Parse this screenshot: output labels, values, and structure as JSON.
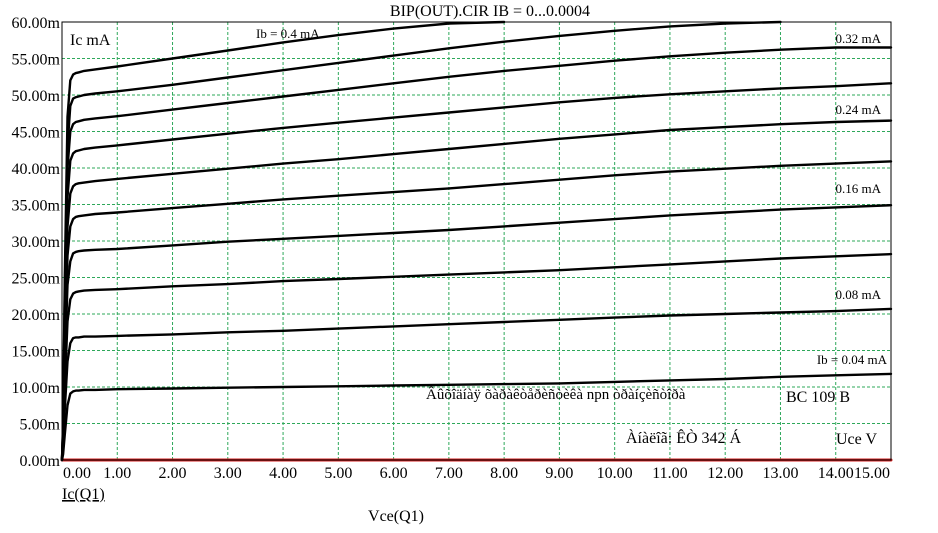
{
  "chart_data": {
    "type": "line",
    "title": "BIP(OUT).CIR IB = 0...0.0004",
    "xlabel": "Vce(Q1)",
    "ylabel": "Ic(Q1)",
    "xlim": [
      0,
      15
    ],
    "ylim": [
      0,
      0.06
    ],
    "grid": true,
    "x_ticks": [
      "0.00",
      "1.00",
      "2.00",
      "3.00",
      "4.00",
      "5.00",
      "6.00",
      "7.00",
      "8.00",
      "9.00",
      "10.00",
      "11.00",
      "12.00",
      "13.00",
      "14.00",
      "15.00"
    ],
    "y_ticks": [
      "0.00m",
      "5.00m",
      "10.00m",
      "15.00m",
      "20.00m",
      "25.00m",
      "30.00m",
      "35.00m",
      "40.00m",
      "45.00m",
      "50.00m",
      "55.00m",
      "60.00m"
    ],
    "x_values": [
      0,
      0.02,
      0.05,
      0.1,
      0.15,
      0.2,
      0.25,
      0.3,
      0.4,
      0.6,
      1,
      2,
      3,
      4,
      5,
      6,
      7,
      8,
      9,
      10,
      11,
      12,
      13,
      14,
      15
    ],
    "series": [
      {
        "values": [
          0,
          0,
          0,
          0,
          0,
          0,
          0,
          0,
          0,
          0,
          0,
          0,
          0,
          0,
          0,
          0,
          0,
          0,
          0,
          0,
          0,
          0,
          0,
          0,
          0
        ],
        "color": "#d42020"
      },
      {
        "values": [
          0,
          0.0008,
          0.0035,
          0.0075,
          0.0091,
          0.0094,
          0.0095,
          0.0095,
          0.0096,
          0.0096,
          0.0097,
          0.0098,
          0.0099,
          0.01,
          0.0101,
          0.0102,
          0.0103,
          0.0104,
          0.0105,
          0.0107,
          0.0109,
          0.0111,
          0.0114,
          0.0116,
          0.0118
        ],
        "color": "#000000"
      },
      {
        "values": [
          0,
          0.0015,
          0.007,
          0.0135,
          0.016,
          0.0167,
          0.0168,
          0.0168,
          0.0169,
          0.0169,
          0.017,
          0.0172,
          0.0175,
          0.0177,
          0.018,
          0.0183,
          0.0186,
          0.0189,
          0.0192,
          0.0195,
          0.0198,
          0.02,
          0.0202,
          0.0204,
          0.0207
        ],
        "color": "#000000"
      },
      {
        "values": [
          0,
          0.002,
          0.01,
          0.019,
          0.022,
          0.0228,
          0.023,
          0.0231,
          0.0232,
          0.0233,
          0.0234,
          0.0238,
          0.0241,
          0.0245,
          0.0248,
          0.0251,
          0.0254,
          0.0257,
          0.026,
          0.0264,
          0.0268,
          0.0272,
          0.0276,
          0.0279,
          0.0282
        ],
        "color": "#000000"
      },
      {
        "values": [
          0,
          0.0025,
          0.013,
          0.024,
          0.0272,
          0.0283,
          0.0285,
          0.0286,
          0.0287,
          0.0288,
          0.0289,
          0.0294,
          0.0299,
          0.0303,
          0.0307,
          0.0311,
          0.0315,
          0.032,
          0.0325,
          0.033,
          0.0335,
          0.0339,
          0.0343,
          0.0346,
          0.0349
        ],
        "color": "#000000"
      },
      {
        "values": [
          0,
          0.003,
          0.015,
          0.028,
          0.032,
          0.033,
          0.0333,
          0.0334,
          0.0335,
          0.0337,
          0.0339,
          0.0345,
          0.0351,
          0.0357,
          0.0362,
          0.0367,
          0.0372,
          0.0378,
          0.0384,
          0.039,
          0.0395,
          0.0399,
          0.0403,
          0.0406,
          0.0409
        ],
        "color": "#000000"
      },
      {
        "values": [
          0,
          0.0035,
          0.017,
          0.032,
          0.0365,
          0.0375,
          0.0378,
          0.0379,
          0.038,
          0.0382,
          0.0385,
          0.0392,
          0.0399,
          0.0406,
          0.0412,
          0.0419,
          0.0426,
          0.0433,
          0.044,
          0.0446,
          0.0452,
          0.0456,
          0.046,
          0.0463,
          0.0465
        ],
        "color": "#000000"
      },
      {
        "values": [
          0,
          0.004,
          0.019,
          0.036,
          0.041,
          0.042,
          0.0423,
          0.0424,
          0.0426,
          0.0428,
          0.0431,
          0.0439,
          0.0447,
          0.0455,
          0.0462,
          0.0469,
          0.0476,
          0.0483,
          0.049,
          0.0496,
          0.0501,
          0.0505,
          0.0509,
          0.0512,
          0.0516
        ],
        "color": "#000000"
      },
      {
        "values": [
          0,
          0.0045,
          0.021,
          0.04,
          0.045,
          0.046,
          0.0463,
          0.0464,
          0.0466,
          0.0468,
          0.0471,
          0.048,
          0.0489,
          0.0498,
          0.0507,
          0.0516,
          0.0525,
          0.0533,
          0.054,
          0.0547,
          0.0553,
          0.0558,
          0.0562,
          0.0565,
          0.0565
        ],
        "color": "#000000"
      },
      {
        "values": [
          0,
          0.005,
          0.023,
          0.043,
          0.0485,
          0.0495,
          0.0497,
          0.0498,
          0.05,
          0.0502,
          0.0505,
          0.0514,
          0.0524,
          0.0534,
          0.0544,
          0.0554,
          0.0564,
          0.0573,
          0.0581,
          0.0588,
          0.0594,
          0.0598,
          0.06,
          null,
          null
        ],
        "color": "#000000"
      },
      {
        "values": [
          0,
          0.0055,
          0.025,
          0.047,
          0.052,
          0.0528,
          0.053,
          0.0531,
          0.0533,
          0.0535,
          0.0539,
          0.055,
          0.0561,
          0.0572,
          0.0582,
          0.0591,
          0.0598,
          0.06,
          null,
          null,
          null,
          null,
          null,
          null,
          null
        ],
        "color": "#000000"
      }
    ],
    "annotations": [
      {
        "text": "Ic mA"
      },
      {
        "text": "Ib = 0.4 mA"
      },
      {
        "text": "0.32 mA"
      },
      {
        "text": "0.24 mA"
      },
      {
        "text": "0.16 mA"
      },
      {
        "text": "0.08 mA"
      },
      {
        "text": "Ib = 0.04 mA"
      },
      {
        "text": "Âûõîäíàÿ õàðàêòåðèñòèêà npn òðàíçèñòîðà"
      },
      {
        "text": "BC 109 B"
      },
      {
        "text": "Àíàëîã: ÊÒ 342 Á"
      },
      {
        "text": "Uce V"
      }
    ]
  }
}
